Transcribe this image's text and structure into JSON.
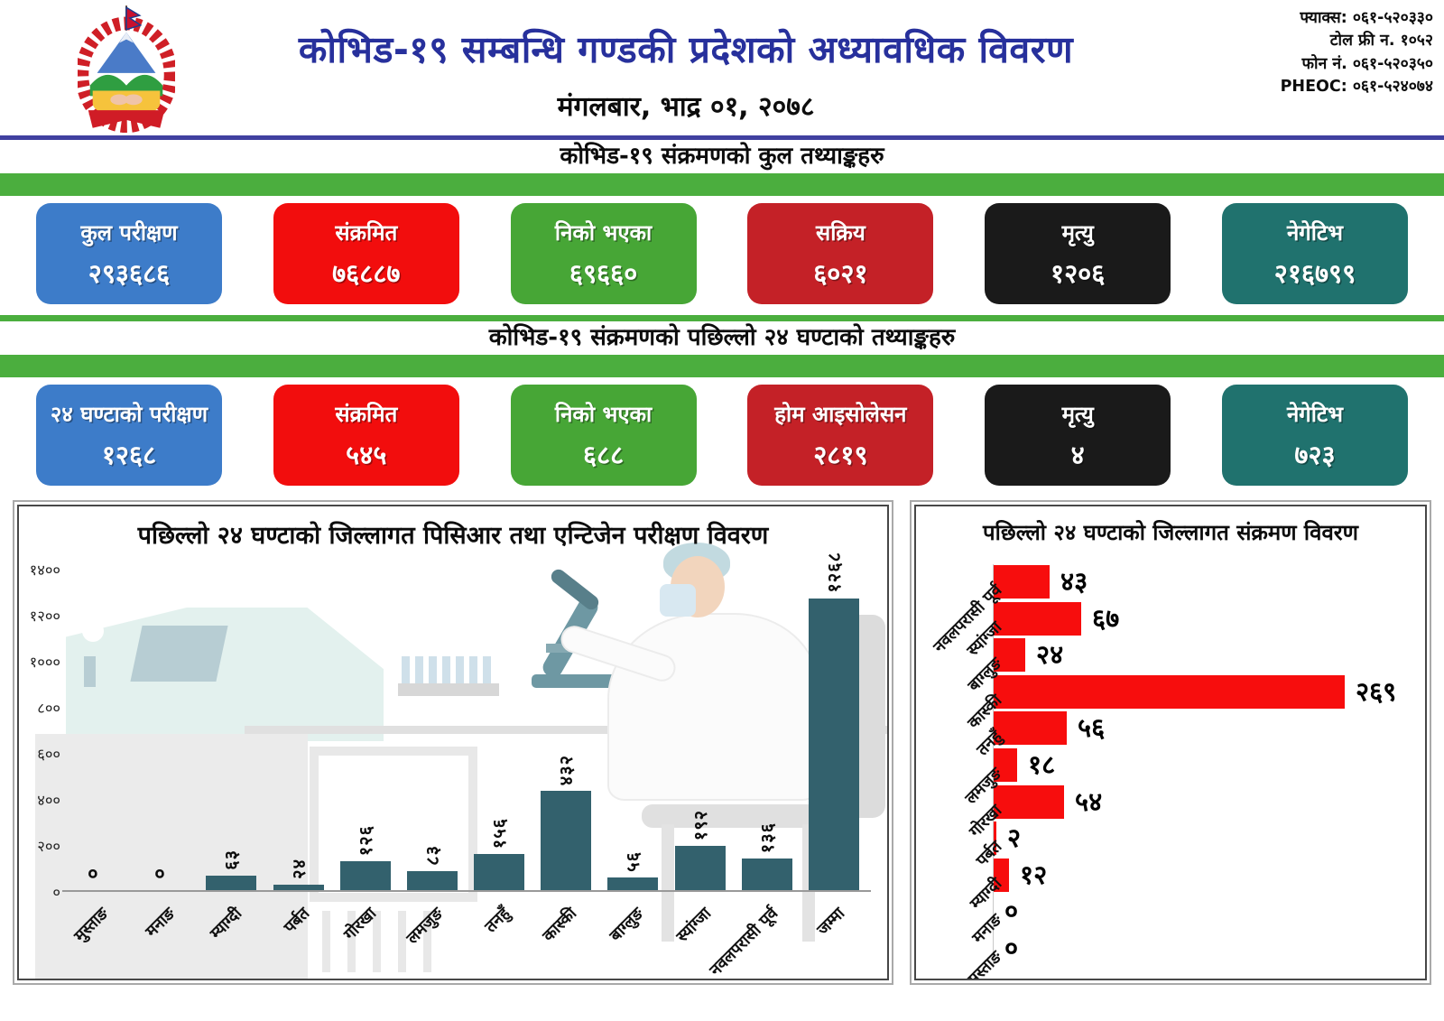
{
  "header": {
    "logo_icon": "nepal-government-emblem",
    "title": "कोभिड-१९ सम्बन्धि गण्डकी प्रदेशको अध्यावधिक विवरण",
    "date": "मंगलबार, भाद्र ०१, २०७८",
    "contact_lines": [
      "फ्याक्स: ०६१-५२०३३०",
      "टोल फ्री न. १०५२",
      "फोन नं. ०६१-५२०३५०",
      "PHEOC: ०६१-५२४०७४"
    ],
    "title_color": "#27309c"
  },
  "accent_green": "#4bae3e",
  "sections": [
    {
      "title": "कोभिड-१९ संक्रमणको कुल तथ्याङ्कहरु",
      "cards": [
        {
          "label": "कुल परीक्षण",
          "value": "२९३६८६",
          "value_num": 293686,
          "color": "#3d7cc9"
        },
        {
          "label": "संक्रमित",
          "value": "७६८८७",
          "value_num": 76887,
          "color": "#f20d0d"
        },
        {
          "label": "निको भएका",
          "value": "६९६६०",
          "value_num": 69660,
          "color": "#47a636"
        },
        {
          "label": "सक्रिय",
          "value": "६०२१",
          "value_num": 6021,
          "color": "#c42127"
        },
        {
          "label": "मृत्यु",
          "value": "१२०६",
          "value_num": 1206,
          "color": "#1a1a1a"
        },
        {
          "label": "नेगेटिभ",
          "value": "२१६७९९",
          "value_num": 216799,
          "color": "#20726e"
        }
      ]
    },
    {
      "title": "कोभिड-१९ संक्रमणको पछिल्लो २४ घण्टाको तथ्याङ्कहरु",
      "cards": [
        {
          "label": "२४ घण्टाको परीक्षण",
          "value": "१२६८",
          "value_num": 1268,
          "color": "#3d7cc9"
        },
        {
          "label": "संक्रमित",
          "value": "५४५",
          "value_num": 545,
          "color": "#f20d0d"
        },
        {
          "label": "निको भएका",
          "value": "६८८",
          "value_num": 688,
          "color": "#47a636"
        },
        {
          "label": "होम आइसोलेसन",
          "value": "२८१९",
          "value_num": 2819,
          "color": "#c42127"
        },
        {
          "label": "मृत्यु",
          "value": "४",
          "value_num": 4,
          "color": "#1a1a1a"
        },
        {
          "label": "नेगेटिभ",
          "value": "७२३",
          "value_num": 723,
          "color": "#20726e"
        }
      ]
    }
  ],
  "chart_data": [
    {
      "type": "bar",
      "orientation": "vertical",
      "title": "पछिल्लो २४ घण्टाको जिल्लागत पिसिआर तथा एन्टिजेन परीक्षण विवरण",
      "categories": [
        "मुस्ताङ",
        "मनाङ",
        "म्याग्दी",
        "पर्बत",
        "गोरखा",
        "लमजुङ",
        "तनहुँ",
        "कास्की",
        "बाग्लुङ",
        "स्यांग्जा",
        "नवलपरासी पूर्व",
        "जम्मा"
      ],
      "values": [
        0,
        0,
        63,
        24,
        126,
        83,
        156,
        432,
        56,
        192,
        136,
        1268
      ],
      "value_labels": [
        "०",
        "०",
        "६३",
        "२४",
        "१२६",
        "८३",
        "१५६",
        "४३२",
        "५६",
        "१९२",
        "१३६",
        "१२६८"
      ],
      "ytick_values": [
        0,
        200,
        400,
        600,
        800,
        1000,
        1200,
        1400
      ],
      "ytick_labels": [
        "०",
        "२००",
        "४००",
        "६००",
        "८००",
        "१०००",
        "१२००",
        "१४००"
      ],
      "ylim": [
        0,
        1400
      ],
      "grid": false,
      "bar_color": "#33616d"
    },
    {
      "type": "bar",
      "orientation": "horizontal",
      "title": "पछिल्लो २४ घण्टाको जिल्लागत संक्रमण विवरण",
      "categories": [
        "नवलपरासी पूर्व",
        "स्यांग्जा",
        "बाग्लुङ",
        "कास्की",
        "तनहुँ",
        "लमजुङ",
        "गोरखा",
        "पर्बत",
        "म्याग्दी",
        "मनाङ",
        "मुस्ताङ"
      ],
      "values": [
        43,
        67,
        24,
        269,
        56,
        18,
        54,
        2,
        12,
        0,
        0
      ],
      "value_labels": [
        "४३",
        "६७",
        "२४",
        "२६९",
        "५६",
        "१८",
        "५४",
        "२",
        "१२",
        "०",
        "०"
      ],
      "xlim": [
        0,
        280
      ],
      "grid": false,
      "bar_color": "#f70d0d"
    }
  ]
}
